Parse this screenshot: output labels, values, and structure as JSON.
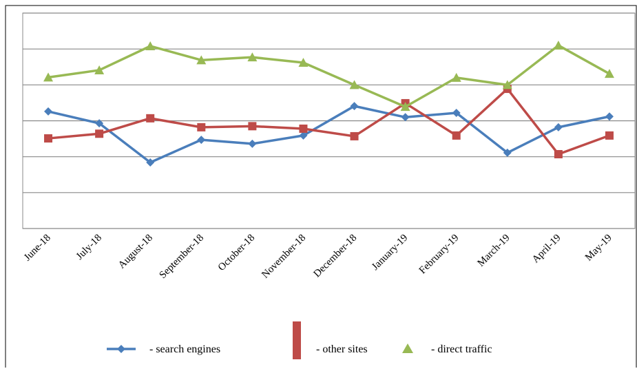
{
  "chart_data": {
    "type": "line",
    "categories": [
      "June-18",
      "July-18",
      "August-18",
      "September-18",
      "October-18",
      "November-18",
      "December-18",
      "January-19",
      "February-19",
      "March-19",
      "April-19",
      "May-19"
    ],
    "series": [
      {
        "name": "- search engines",
        "color": "#4a7ebb",
        "marker": "diamond",
        "values": [
          3.26,
          2.93,
          1.84,
          2.47,
          2.36,
          2.59,
          3.41,
          3.1,
          3.22,
          2.11,
          2.82,
          3.12
        ]
      },
      {
        "name": "- other sites",
        "color": "#be4b48",
        "marker": "square",
        "values": [
          2.51,
          2.64,
          3.07,
          2.82,
          2.85,
          2.78,
          2.57,
          3.49,
          2.59,
          3.89,
          2.07,
          2.59
        ]
      },
      {
        "name": "- direct traffic",
        "color": "#98b954",
        "marker": "triangle",
        "values": [
          4.21,
          4.41,
          5.08,
          4.69,
          4.77,
          4.62,
          4.0,
          3.39,
          4.2,
          4.0,
          5.1,
          4.31
        ]
      }
    ],
    "ylim": [
      0,
      6
    ],
    "yticks": [
      0,
      1,
      2,
      3,
      4,
      5,
      6
    ],
    "grid": true
  }
}
